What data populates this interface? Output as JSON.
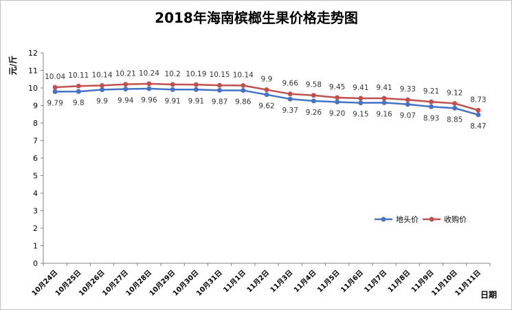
{
  "chart_data": {
    "type": "line",
    "title": "2018年海南槟榔生果价格走势图",
    "ylabel": "元/斤",
    "xlabel": "日期",
    "ylim": [
      0,
      12
    ],
    "yticks": [
      0,
      1,
      2,
      3,
      4,
      5,
      6,
      7,
      8,
      9,
      10,
      11,
      12
    ],
    "grid": false,
    "legend_position": "lower-right",
    "categories": [
      "10月24日",
      "10月25日",
      "10月26日",
      "10月27日",
      "10月28日",
      "10月29日",
      "10月30日",
      "10月31日",
      "11月1日",
      "11月2日",
      "11月3日",
      "11月4日",
      "11月5日",
      "11月6日",
      "11月7日",
      "11月8日",
      "11月9日",
      "11月10日",
      "11月11日"
    ],
    "series": [
      {
        "name": "地头价",
        "color": "#4472c4",
        "values": [
          9.79,
          9.8,
          9.9,
          9.94,
          9.96,
          9.91,
          9.91,
          9.87,
          9.86,
          9.62,
          9.37,
          9.26,
          9.2,
          9.15,
          9.16,
          9.07,
          8.93,
          8.85,
          8.47
        ],
        "labels": [
          "9.79",
          "9.8",
          "9.9",
          "9.94",
          "9.96",
          "9.91",
          "9.91",
          "9.87",
          "9.86",
          "9.62",
          "9.37",
          "9.26",
          "9.20",
          "9.15",
          "9.16",
          "9.07",
          "8.93",
          "8.85",
          "8.47"
        ]
      },
      {
        "name": "收购价",
        "color": "#c0504d",
        "values": [
          10.04,
          10.11,
          10.14,
          10.21,
          10.24,
          10.2,
          10.19,
          10.15,
          10.14,
          9.9,
          9.66,
          9.58,
          9.45,
          9.41,
          9.41,
          9.33,
          9.21,
          9.12,
          8.73
        ],
        "labels": [
          "10.04",
          "10.11",
          "10.14",
          "10.21",
          "10.24",
          "10.2",
          "10.19",
          "10.15",
          "10.14",
          "9.9",
          "9.66",
          "9.58",
          "9.45",
          "9.41",
          "9.41",
          "9.33",
          "9.21",
          "9.12",
          "8.73"
        ]
      }
    ]
  }
}
